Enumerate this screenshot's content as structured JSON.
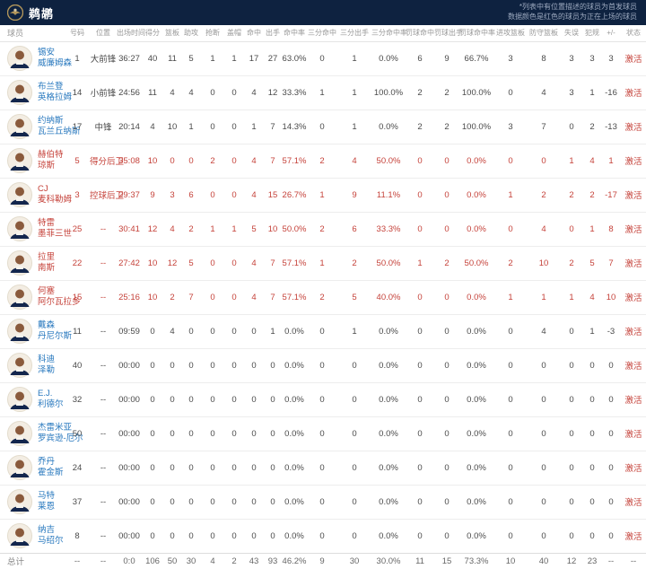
{
  "header": {
    "team_name": "鹈鹕",
    "note_line1": "*列表中有位置描述的球员为首发球员",
    "note_line2": "数据颜色是红色的球员为正在上场的球员"
  },
  "colors": {
    "topbar_bg": "#0e2240",
    "on_court_red": "#c5423a",
    "link_blue": "#2878be",
    "logo_gold": "#b4975a"
  },
  "table": {
    "columns": [
      "球员",
      "号码",
      "位置",
      "出场时间",
      "得分",
      "篮板",
      "助攻",
      "抢断",
      "盖帽",
      "命中",
      "出手",
      "命中率",
      "三分命中",
      "三分出手",
      "三分命中率",
      "罚球命中",
      "罚球出手",
      "罚球命中率",
      "进攻篮板",
      "防守篮板",
      "失误",
      "犯规",
      "+/-",
      "状态"
    ],
    "players": [
      {
        "name_line1": "锡安",
        "name_line2": "威廉姆森",
        "number": "1",
        "position": "大前锋",
        "stats": [
          "36:27",
          "40",
          "11",
          "5",
          "1",
          "1",
          "17",
          "27",
          "63.0%",
          "0",
          "1",
          "0.0%",
          "6",
          "9",
          "66.7%",
          "3",
          "8",
          "3",
          "3",
          "3"
        ],
        "status": "激活",
        "on_court": false
      },
      {
        "name_line1": "布兰登",
        "name_line2": "英格拉姆",
        "number": "14",
        "position": "小前锋",
        "stats": [
          "24:56",
          "11",
          "4",
          "4",
          "0",
          "0",
          "4",
          "12",
          "33.3%",
          "1",
          "1",
          "100.0%",
          "2",
          "2",
          "100.0%",
          "0",
          "4",
          "3",
          "1",
          "-16"
        ],
        "status": "激活",
        "on_court": false
      },
      {
        "name_line1": "约纳斯",
        "name_line2": "瓦兰丘纳斯",
        "number": "17",
        "position": "中锋",
        "stats": [
          "20:14",
          "4",
          "10",
          "1",
          "0",
          "0",
          "1",
          "7",
          "14.3%",
          "0",
          "1",
          "0.0%",
          "2",
          "2",
          "100.0%",
          "3",
          "7",
          "0",
          "2",
          "-13"
        ],
        "status": "激活",
        "on_court": false
      },
      {
        "name_line1": "赫伯特",
        "name_line2": "琼斯",
        "number": "5",
        "position": "得分后卫",
        "stats": [
          "35:08",
          "10",
          "0",
          "0",
          "2",
          "0",
          "4",
          "7",
          "57.1%",
          "2",
          "4",
          "50.0%",
          "0",
          "0",
          "0.0%",
          "0",
          "0",
          "1",
          "4",
          "1"
        ],
        "status": "激活",
        "on_court": true
      },
      {
        "name_line1": "CJ",
        "name_line2": "麦科勒姆",
        "number": "3",
        "position": "控球后卫",
        "stats": [
          "29:37",
          "9",
          "3",
          "6",
          "0",
          "0",
          "4",
          "15",
          "26.7%",
          "1",
          "9",
          "11.1%",
          "0",
          "0",
          "0.0%",
          "1",
          "2",
          "2",
          "2",
          "-17"
        ],
        "status": "激活",
        "on_court": true
      },
      {
        "name_line1": "特雷",
        "name_line2": "墨菲三世",
        "number": "25",
        "position": "--",
        "stats": [
          "30:41",
          "12",
          "4",
          "2",
          "1",
          "1",
          "5",
          "10",
          "50.0%",
          "2",
          "6",
          "33.3%",
          "0",
          "0",
          "0.0%",
          "0",
          "4",
          "0",
          "1",
          "8"
        ],
        "status": "激活",
        "on_court": true
      },
      {
        "name_line1": "拉里",
        "name_line2": "南斯",
        "number": "22",
        "position": "--",
        "stats": [
          "27:42",
          "10",
          "12",
          "5",
          "0",
          "0",
          "4",
          "7",
          "57.1%",
          "1",
          "2",
          "50.0%",
          "1",
          "2",
          "50.0%",
          "2",
          "10",
          "2",
          "5",
          "7"
        ],
        "status": "激活",
        "on_court": true
      },
      {
        "name_line1": "何塞",
        "name_line2": "阿尔瓦拉多",
        "number": "15",
        "position": "--",
        "stats": [
          "25:16",
          "10",
          "2",
          "7",
          "0",
          "0",
          "4",
          "7",
          "57.1%",
          "2",
          "5",
          "40.0%",
          "0",
          "0",
          "0.0%",
          "1",
          "1",
          "1",
          "4",
          "10"
        ],
        "status": "激活",
        "on_court": true
      },
      {
        "name_line1": "戴森",
        "name_line2": "丹尼尔斯",
        "number": "11",
        "position": "--",
        "stats": [
          "09:59",
          "0",
          "4",
          "0",
          "0",
          "0",
          "0",
          "1",
          "0.0%",
          "0",
          "1",
          "0.0%",
          "0",
          "0",
          "0.0%",
          "0",
          "4",
          "0",
          "1",
          "-3"
        ],
        "status": "激活",
        "on_court": false
      },
      {
        "name_line1": "科迪",
        "name_line2": "泽勒",
        "number": "40",
        "position": "--",
        "stats": [
          "00:00",
          "0",
          "0",
          "0",
          "0",
          "0",
          "0",
          "0",
          "0.0%",
          "0",
          "0",
          "0.0%",
          "0",
          "0",
          "0.0%",
          "0",
          "0",
          "0",
          "0",
          "0"
        ],
        "status": "激活",
        "on_court": false
      },
      {
        "name_line1": "E.J.",
        "name_line2": "利德尔",
        "number": "32",
        "position": "--",
        "stats": [
          "00:00",
          "0",
          "0",
          "0",
          "0",
          "0",
          "0",
          "0",
          "0.0%",
          "0",
          "0",
          "0.0%",
          "0",
          "0",
          "0.0%",
          "0",
          "0",
          "0",
          "0",
          "0"
        ],
        "status": "激活",
        "on_court": false
      },
      {
        "name_line1": "杰雷米亚",
        "name_line2": "罗宾逊-厄尔",
        "number": "50",
        "position": "--",
        "stats": [
          "00:00",
          "0",
          "0",
          "0",
          "0",
          "0",
          "0",
          "0",
          "0.0%",
          "0",
          "0",
          "0.0%",
          "0",
          "0",
          "0.0%",
          "0",
          "0",
          "0",
          "0",
          "0"
        ],
        "status": "激活",
        "on_court": false
      },
      {
        "name_line1": "乔丹",
        "name_line2": "霍金斯",
        "number": "24",
        "position": "--",
        "stats": [
          "00:00",
          "0",
          "0",
          "0",
          "0",
          "0",
          "0",
          "0",
          "0.0%",
          "0",
          "0",
          "0.0%",
          "0",
          "0",
          "0.0%",
          "0",
          "0",
          "0",
          "0",
          "0"
        ],
        "status": "激活",
        "on_court": false
      },
      {
        "name_line1": "马特",
        "name_line2": "莱恩",
        "number": "37",
        "position": "--",
        "stats": [
          "00:00",
          "0",
          "0",
          "0",
          "0",
          "0",
          "0",
          "0",
          "0.0%",
          "0",
          "0",
          "0.0%",
          "0",
          "0",
          "0.0%",
          "0",
          "0",
          "0",
          "0",
          "0"
        ],
        "status": "激活",
        "on_court": false
      },
      {
        "name_line1": "纳吉",
        "name_line2": "马绍尔",
        "number": "8",
        "position": "--",
        "stats": [
          "00:00",
          "0",
          "0",
          "0",
          "0",
          "0",
          "0",
          "0",
          "0.0%",
          "0",
          "0",
          "0.0%",
          "0",
          "0",
          "0.0%",
          "0",
          "0",
          "0",
          "0",
          "0"
        ],
        "status": "激活",
        "on_court": false
      }
    ],
    "total": {
      "label": "总计",
      "number": "--",
      "position": "--",
      "stats": [
        "0:0",
        "106",
        "50",
        "30",
        "4",
        "2",
        "43",
        "93",
        "46.2%",
        "9",
        "30",
        "30.0%",
        "11",
        "15",
        "73.3%",
        "10",
        "40",
        "12",
        "23",
        "--"
      ],
      "status": "--"
    }
  }
}
